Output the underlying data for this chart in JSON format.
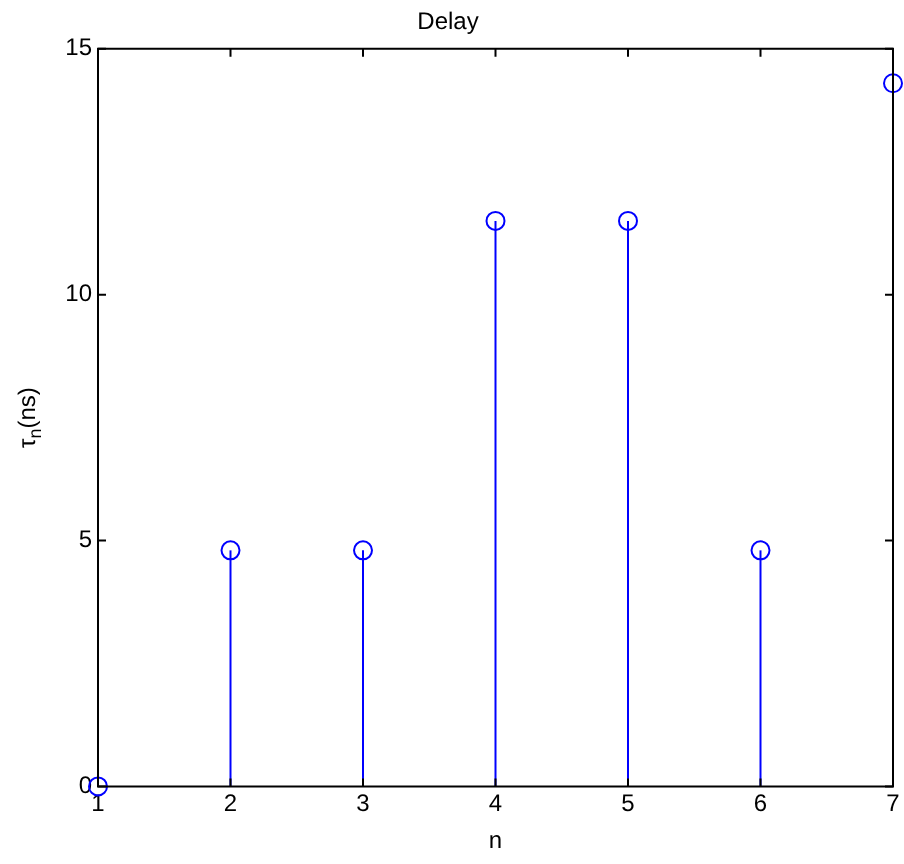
{
  "chart_data": {
    "type": "lollipop",
    "title": "Delay",
    "xlabel": "n",
    "ylabel": "τ$_{n}$(ns)",
    "x": [
      1,
      2,
      3,
      4,
      5,
      6,
      7
    ],
    "values": [
      0,
      4.8,
      4.8,
      11.5,
      11.5,
      4.8,
      14.3
    ],
    "color": "#0000ff",
    "marker": "circle",
    "xlim": [
      1,
      7
    ],
    "xticks": [
      1,
      2,
      3,
      4,
      5,
      6,
      7
    ],
    "ylim": [
      0,
      15
    ],
    "yticks": [
      0,
      5,
      10,
      15
    ]
  }
}
